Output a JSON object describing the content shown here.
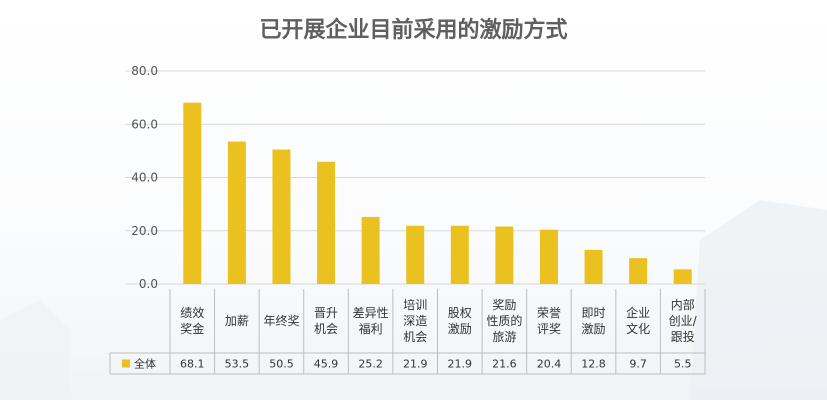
{
  "chart_data": {
    "type": "bar",
    "title": "已开展企业目前采用的激励方式",
    "categories": [
      "绩效\n奖金",
      "加薪",
      "年终奖",
      "晋升\n机会",
      "差异性\n福利",
      "培训\n深造\n机会",
      "股权\n激励",
      "奖励\n性质的\n旅游",
      "荣誉\n评奖",
      "即时\n激励",
      "企业\n文化",
      "内部\n创业/\n跟投"
    ],
    "series": [
      {
        "name": "全体",
        "values": [
          68.1,
          53.5,
          50.5,
          45.9,
          25.2,
          21.9,
          21.9,
          21.6,
          20.4,
          12.8,
          9.7,
          5.5
        ],
        "value_labels": [
          "68.1",
          "53.5",
          "50.5",
          "45.9",
          "25.2",
          "21.9",
          "21.9",
          "21.6",
          "20.4",
          "12.8",
          "9.7",
          "5.5"
        ]
      }
    ],
    "ylim": [
      0,
      80
    ],
    "yticks": [
      "0.0",
      "20.0",
      "40.0",
      "60.0",
      "80.0"
    ],
    "grid": true,
    "legend": "data-table",
    "bar_color": "#EBC11F",
    "gridline_color": "#D9D9D9"
  }
}
